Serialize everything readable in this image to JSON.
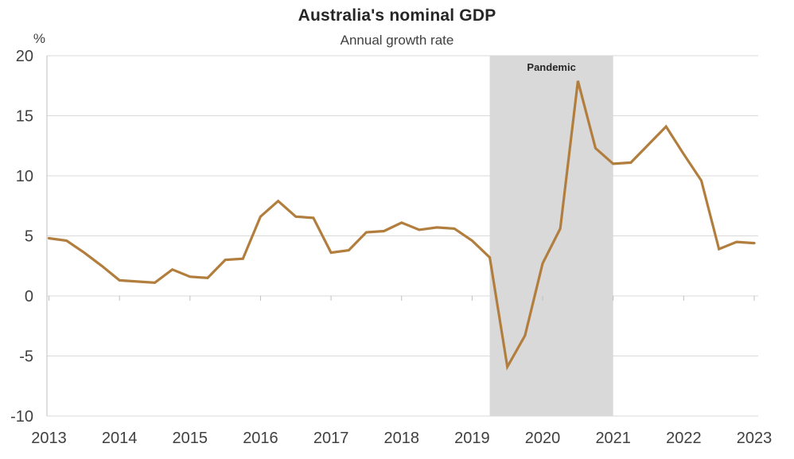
{
  "chart_data": {
    "type": "line",
    "title": "Australia's nominal GDP",
    "subtitle": "Annual growth rate",
    "y_unit": "%",
    "x": [
      "2013 Q1",
      "2013 Q2",
      "2013 Q3",
      "2013 Q4",
      "2014 Q1",
      "2014 Q2",
      "2014 Q3",
      "2014 Q4",
      "2015 Q1",
      "2015 Q2",
      "2015 Q3",
      "2015 Q4",
      "2016 Q1",
      "2016 Q2",
      "2016 Q3",
      "2016 Q4",
      "2017 Q1",
      "2017 Q2",
      "2017 Q3",
      "2017 Q4",
      "2018 Q1",
      "2018 Q2",
      "2018 Q3",
      "2018 Q4",
      "2019 Q1",
      "2019 Q2",
      "2019 Q3",
      "2019 Q4",
      "2020 Q1",
      "2020 Q2",
      "2020 Q3",
      "2020 Q4",
      "2021 Q1",
      "2021 Q2",
      "2021 Q3",
      "2021 Q4",
      "2022 Q1",
      "2022 Q2",
      "2022 Q3",
      "2022 Q4",
      "2023 Q1"
    ],
    "series": [
      {
        "name": "Nominal GDP annual growth rate",
        "values": [
          4.8,
          4.6,
          3.6,
          2.5,
          1.3,
          1.2,
          1.1,
          2.2,
          1.6,
          1.5,
          3.0,
          3.1,
          6.6,
          7.9,
          6.6,
          6.5,
          3.6,
          3.8,
          5.3,
          5.4,
          6.1,
          5.5,
          5.7,
          5.6,
          4.6,
          3.2,
          -5.9,
          -3.3,
          2.7,
          5.6,
          17.9,
          12.3,
          11.0,
          11.1,
          12.6,
          14.1,
          11.8,
          9.6,
          3.9,
          4.5,
          4.4
        ]
      }
    ],
    "ylim": [
      -10,
      20
    ],
    "y_ticks": [
      20,
      15,
      10,
      5,
      0,
      -5,
      -10
    ],
    "y_tick_labels": [
      "20",
      "15",
      "10",
      "5",
      "0",
      "-5",
      "-10"
    ],
    "x_tick_labels": [
      "2013",
      "2014",
      "2015",
      "2016",
      "2017",
      "2018",
      "2019",
      "2020",
      "2021",
      "2022",
      "2023"
    ],
    "x_tick_indices": [
      0,
      4,
      8,
      12,
      16,
      20,
      24,
      28,
      32,
      36,
      40
    ],
    "grid": true,
    "legend": "none",
    "annotation_band": {
      "label": "Pandemic",
      "start_index": 25,
      "end_index": 32,
      "color": "#D9D9D9"
    },
    "colors": {
      "line": "#B27E3E",
      "gridline": "#D9D9D9",
      "axis": "#BFBFBF",
      "tick_text": "#404040",
      "title_text": "#262626",
      "subtitle_text": "#404040",
      "annotation_text": "#262626",
      "background": "#FFFFFF"
    }
  }
}
